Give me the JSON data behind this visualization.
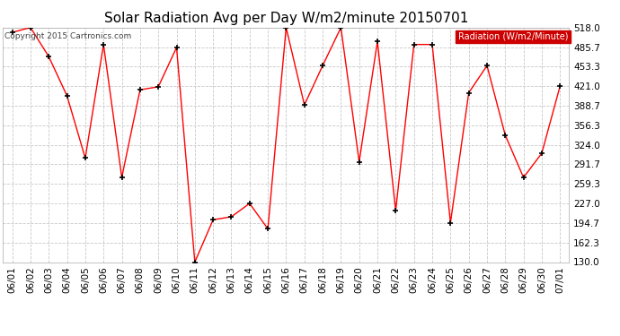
{
  "title": "Solar Radiation Avg per Day W/m2/minute 20150701",
  "copyright": "Copyright 2015 Cartronics.com",
  "legend_label": "Radiation (W/m2/Minute)",
  "dates": [
    "06/01",
    "06/02",
    "06/03",
    "06/04",
    "06/05",
    "06/06",
    "06/07",
    "06/08",
    "06/09",
    "06/10",
    "06/11",
    "06/12",
    "06/13",
    "06/14",
    "06/15",
    "06/16",
    "06/17",
    "06/18",
    "06/19",
    "06/20",
    "06/21",
    "06/22",
    "06/23",
    "06/24",
    "06/25",
    "06/26",
    "06/27",
    "06/28",
    "06/29",
    "06/30",
    "07/01"
  ],
  "values": [
    510,
    518,
    470,
    405,
    302,
    490,
    270,
    415,
    420,
    485,
    130,
    200,
    205,
    227,
    185,
    518,
    390,
    455,
    518,
    296,
    495,
    215,
    490,
    490,
    195,
    410,
    455,
    340,
    270,
    310,
    421
  ],
  "yticks": [
    130.0,
    162.3,
    194.7,
    227.0,
    259.3,
    291.7,
    324.0,
    356.3,
    388.7,
    421.0,
    453.3,
    485.7,
    518.0
  ],
  "ymin": 130.0,
  "ymax": 518.0,
  "line_color": "#ff0000",
  "marker_color": "#000000",
  "bg_color": "#ffffff",
  "grid_color": "#c8c8c8",
  "title_fontsize": 11,
  "copyright_fontsize": 6.5,
  "tick_fontsize": 7.5,
  "legend_bg": "#cc0000",
  "legend_fg": "#ffffff",
  "legend_fontsize": 7
}
